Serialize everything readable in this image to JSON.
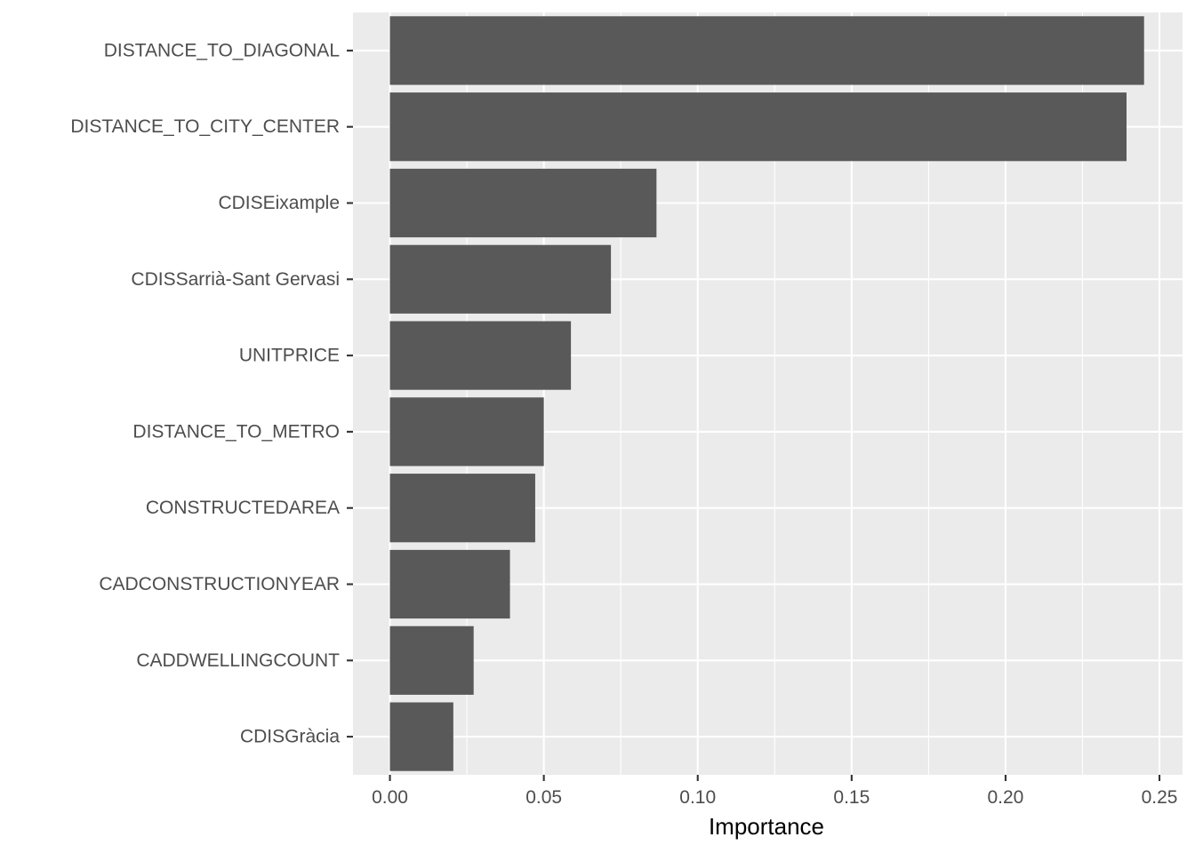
{
  "chart_data": {
    "type": "bar",
    "orientation": "horizontal",
    "categories": [
      "DISTANCE_TO_DIAGONAL",
      "DISTANCE_TO_CITY_CENTER",
      "CDISEixample",
      "CDISSarrià-Sant Gervasi",
      "UNITPRICE",
      "DISTANCE_TO_METRO",
      "CONSTRUCTEDAREA",
      "CADCONSTRUCTIONYEAR",
      "CADDWELLINGCOUNT",
      "CDISGràcia"
    ],
    "values": [
      0.245,
      0.2393,
      0.0866,
      0.0718,
      0.0588,
      0.05,
      0.0472,
      0.039,
      0.0272,
      0.0206
    ],
    "xlabel": "Importance",
    "ylabel": "",
    "title": "",
    "xlim": [
      -0.012,
      0.2575
    ],
    "x_ticks": [
      0,
      0.05,
      0.1,
      0.15,
      0.2,
      0.25
    ],
    "x_tick_labels": [
      "0.00",
      "0.05",
      "0.10",
      "0.15",
      "0.20",
      "0.25"
    ],
    "grid": true,
    "legend": "none",
    "colors": {
      "bar": "#595959",
      "panel": "#ebebeb",
      "grid": "#ffffff"
    }
  }
}
